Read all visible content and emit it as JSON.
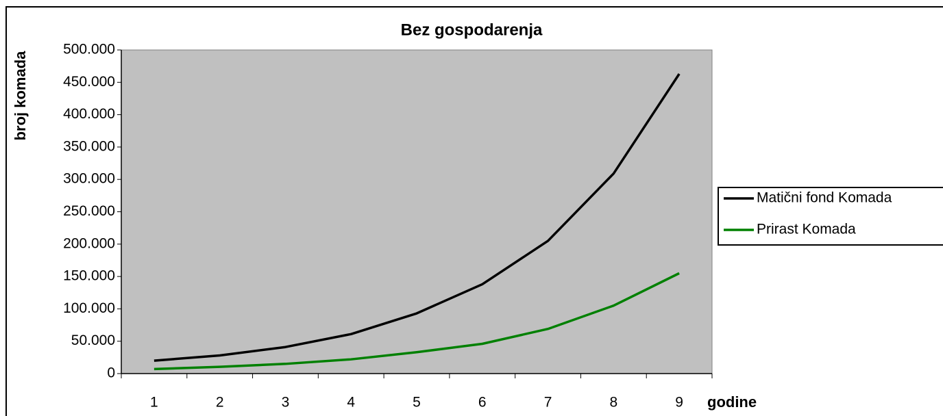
{
  "chart_data": {
    "type": "line",
    "title": "Bez gospodarenja",
    "x_label": "godine",
    "y_label": "broj komada",
    "categories": [
      "1",
      "2",
      "3",
      "4",
      "5",
      "6",
      "7",
      "8",
      "9"
    ],
    "series": [
      {
        "name": "Matični fond Komada",
        "color": "#000000",
        "values": [
          20000,
          28000,
          41000,
          61000,
          93000,
          138000,
          205000,
          309000,
          463000
        ]
      },
      {
        "name": "Prirast Komada",
        "color": "#008000",
        "values": [
          7000,
          10500,
          15000,
          22000,
          33000,
          46000,
          69000,
          105000,
          155000
        ]
      }
    ],
    "ylim": [
      0,
      500000
    ],
    "yticks": [
      0,
      {
        "value": 50000,
        "label": "50.000"
      },
      {
        "value": 100000,
        "label": "100.000"
      },
      {
        "value": 150000,
        "label": "150.000"
      },
      {
        "value": 200000,
        "label": "200.000"
      },
      {
        "value": 250000,
        "label": "250.000"
      },
      {
        "value": 300000,
        "label": "300.000"
      },
      {
        "value": 350000,
        "label": "350.000"
      },
      {
        "value": 400000,
        "label": "400.000"
      },
      {
        "value": 450000,
        "label": "450.000"
      },
      {
        "value": 500000,
        "label": "500.000"
      }
    ],
    "plot_background": "#c0c0c0",
    "legend": "right"
  }
}
